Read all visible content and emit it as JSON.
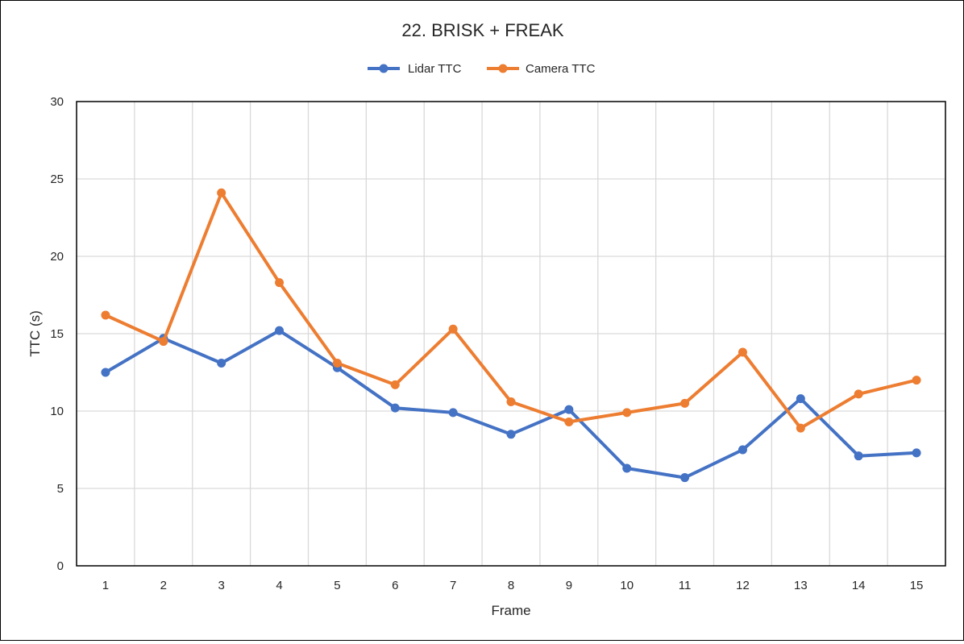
{
  "chart_data": {
    "type": "line",
    "title": "22. BRISK + FREAK",
    "xlabel": "Frame",
    "ylabel": "TTC (s)",
    "x": [
      1,
      2,
      3,
      4,
      5,
      6,
      7,
      8,
      9,
      10,
      11,
      12,
      13,
      14,
      15
    ],
    "ylim": [
      0,
      30
    ],
    "yticks": [
      0,
      5,
      10,
      15,
      20,
      25,
      30
    ],
    "grid": true,
    "legend_position": "top",
    "series": [
      {
        "name": "Lidar TTC",
        "color": "#4472C4",
        "values": [
          12.5,
          14.7,
          13.1,
          15.2,
          12.8,
          10.2,
          9.9,
          8.5,
          10.1,
          6.3,
          5.7,
          7.5,
          10.8,
          7.1,
          7.3
        ]
      },
      {
        "name": "Camera TTC",
        "color": "#ED7D31",
        "values": [
          16.2,
          14.5,
          24.1,
          18.3,
          13.1,
          11.7,
          15.3,
          10.6,
          9.3,
          9.9,
          10.5,
          13.8,
          8.9,
          11.1,
          12.0
        ]
      }
    ]
  }
}
